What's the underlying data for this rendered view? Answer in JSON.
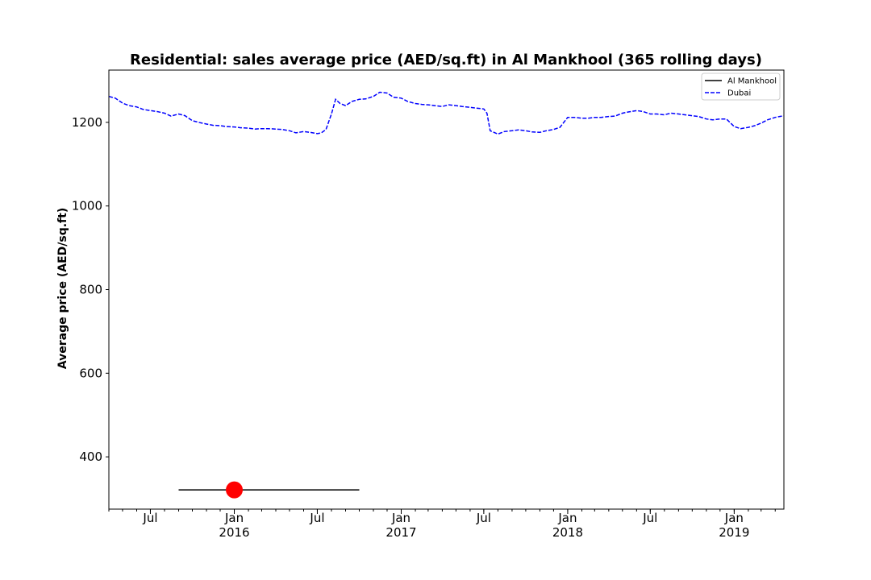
{
  "chart_data": {
    "type": "line",
    "title": "Residential: sales average price (AED/sq.ft) in Al Mankhool (365 rolling days)",
    "xlabel": "",
    "ylabel": "Average price (AED/sq.ft)",
    "xlim": [
      "2015-04-01",
      "2019-04-20"
    ],
    "ylim": [
      275,
      1325
    ],
    "yticks": [
      400,
      600,
      800,
      1000,
      1200
    ],
    "xticks": [
      {
        "date": "2015-07-01",
        "label": "Jul",
        "year": ""
      },
      {
        "date": "2016-01-01",
        "label": "Jan",
        "year": "2016"
      },
      {
        "date": "2016-07-01",
        "label": "Jul",
        "year": ""
      },
      {
        "date": "2017-01-01",
        "label": "Jan",
        "year": "2017"
      },
      {
        "date": "2017-07-01",
        "label": "Jul",
        "year": ""
      },
      {
        "date": "2018-01-01",
        "label": "Jan",
        "year": "2018"
      },
      {
        "date": "2018-07-01",
        "label": "Jul",
        "year": ""
      },
      {
        "date": "2019-01-01",
        "label": "Jan",
        "year": "2019"
      }
    ],
    "grid": false,
    "legend_position": "top-right",
    "legend": [
      "Al Mankhool",
      "Dubai"
    ],
    "series": [
      {
        "name": "Al Mankhool",
        "style": "solid",
        "color": "#000000",
        "x": [
          "2015-09-01",
          "2016-10-01"
        ],
        "y": [
          321,
          321
        ]
      },
      {
        "name": "Dubai",
        "style": "dashed",
        "color": "#0000ff",
        "x": [
          "2015-04-01",
          "2015-04-15",
          "2015-05-01",
          "2015-05-15",
          "2015-06-01",
          "2015-06-15",
          "2015-07-01",
          "2015-07-15",
          "2015-08-01",
          "2015-08-15",
          "2015-09-01",
          "2015-09-15",
          "2015-10-01",
          "2015-10-15",
          "2015-11-01",
          "2015-11-15",
          "2015-12-01",
          "2015-12-15",
          "2016-01-01",
          "2016-01-15",
          "2016-02-01",
          "2016-02-15",
          "2016-03-01",
          "2016-03-15",
          "2016-04-01",
          "2016-04-15",
          "2016-05-01",
          "2016-05-15",
          "2016-06-01",
          "2016-06-15",
          "2016-07-01",
          "2016-07-10",
          "2016-07-20",
          "2016-08-01",
          "2016-08-10",
          "2016-08-20",
          "2016-09-01",
          "2016-09-15",
          "2016-10-01",
          "2016-10-15",
          "2016-11-01",
          "2016-11-15",
          "2016-12-01",
          "2016-12-15",
          "2017-01-01",
          "2017-01-15",
          "2017-02-01",
          "2017-02-15",
          "2017-03-01",
          "2017-03-15",
          "2017-04-01",
          "2017-04-15",
          "2017-05-01",
          "2017-05-15",
          "2017-06-01",
          "2017-06-15",
          "2017-07-01",
          "2017-07-08",
          "2017-07-15",
          "2017-08-01",
          "2017-08-15",
          "2017-09-01",
          "2017-09-15",
          "2017-10-01",
          "2017-10-15",
          "2017-11-01",
          "2017-11-15",
          "2017-12-01",
          "2017-12-15",
          "2018-01-01",
          "2018-01-15",
          "2018-02-01",
          "2018-02-15",
          "2018-03-01",
          "2018-03-15",
          "2018-04-01",
          "2018-04-15",
          "2018-05-01",
          "2018-05-15",
          "2018-06-01",
          "2018-06-15",
          "2018-07-01",
          "2018-07-15",
          "2018-08-01",
          "2018-08-15",
          "2018-09-01",
          "2018-09-15",
          "2018-10-01",
          "2018-10-15",
          "2018-11-01",
          "2018-11-15",
          "2018-12-01",
          "2018-12-15",
          "2019-01-01",
          "2019-01-15",
          "2019-02-01",
          "2019-02-15",
          "2019-03-01",
          "2019-03-15",
          "2019-04-01",
          "2019-04-20"
        ],
        "y": [
          1262,
          1258,
          1246,
          1240,
          1237,
          1231,
          1228,
          1226,
          1222,
          1215,
          1220,
          1216,
          1204,
          1200,
          1196,
          1193,
          1192,
          1190,
          1189,
          1187,
          1186,
          1184,
          1185,
          1185,
          1184,
          1183,
          1180,
          1175,
          1178,
          1176,
          1173,
          1175,
          1183,
          1220,
          1255,
          1245,
          1240,
          1250,
          1255,
          1256,
          1262,
          1272,
          1270,
          1260,
          1258,
          1250,
          1245,
          1243,
          1242,
          1240,
          1238,
          1242,
          1240,
          1238,
          1236,
          1234,
          1232,
          1222,
          1180,
          1172,
          1178,
          1180,
          1182,
          1180,
          1177,
          1176,
          1180,
          1183,
          1188,
          1212,
          1212,
          1210,
          1210,
          1212,
          1212,
          1214,
          1215,
          1222,
          1225,
          1228,
          1226,
          1220,
          1220,
          1218,
          1222,
          1220,
          1218,
          1216,
          1214,
          1208,
          1206,
          1208,
          1208,
          1190,
          1185,
          1188,
          1192,
          1198,
          1206,
          1212,
          1216
        ]
      }
    ]
  }
}
